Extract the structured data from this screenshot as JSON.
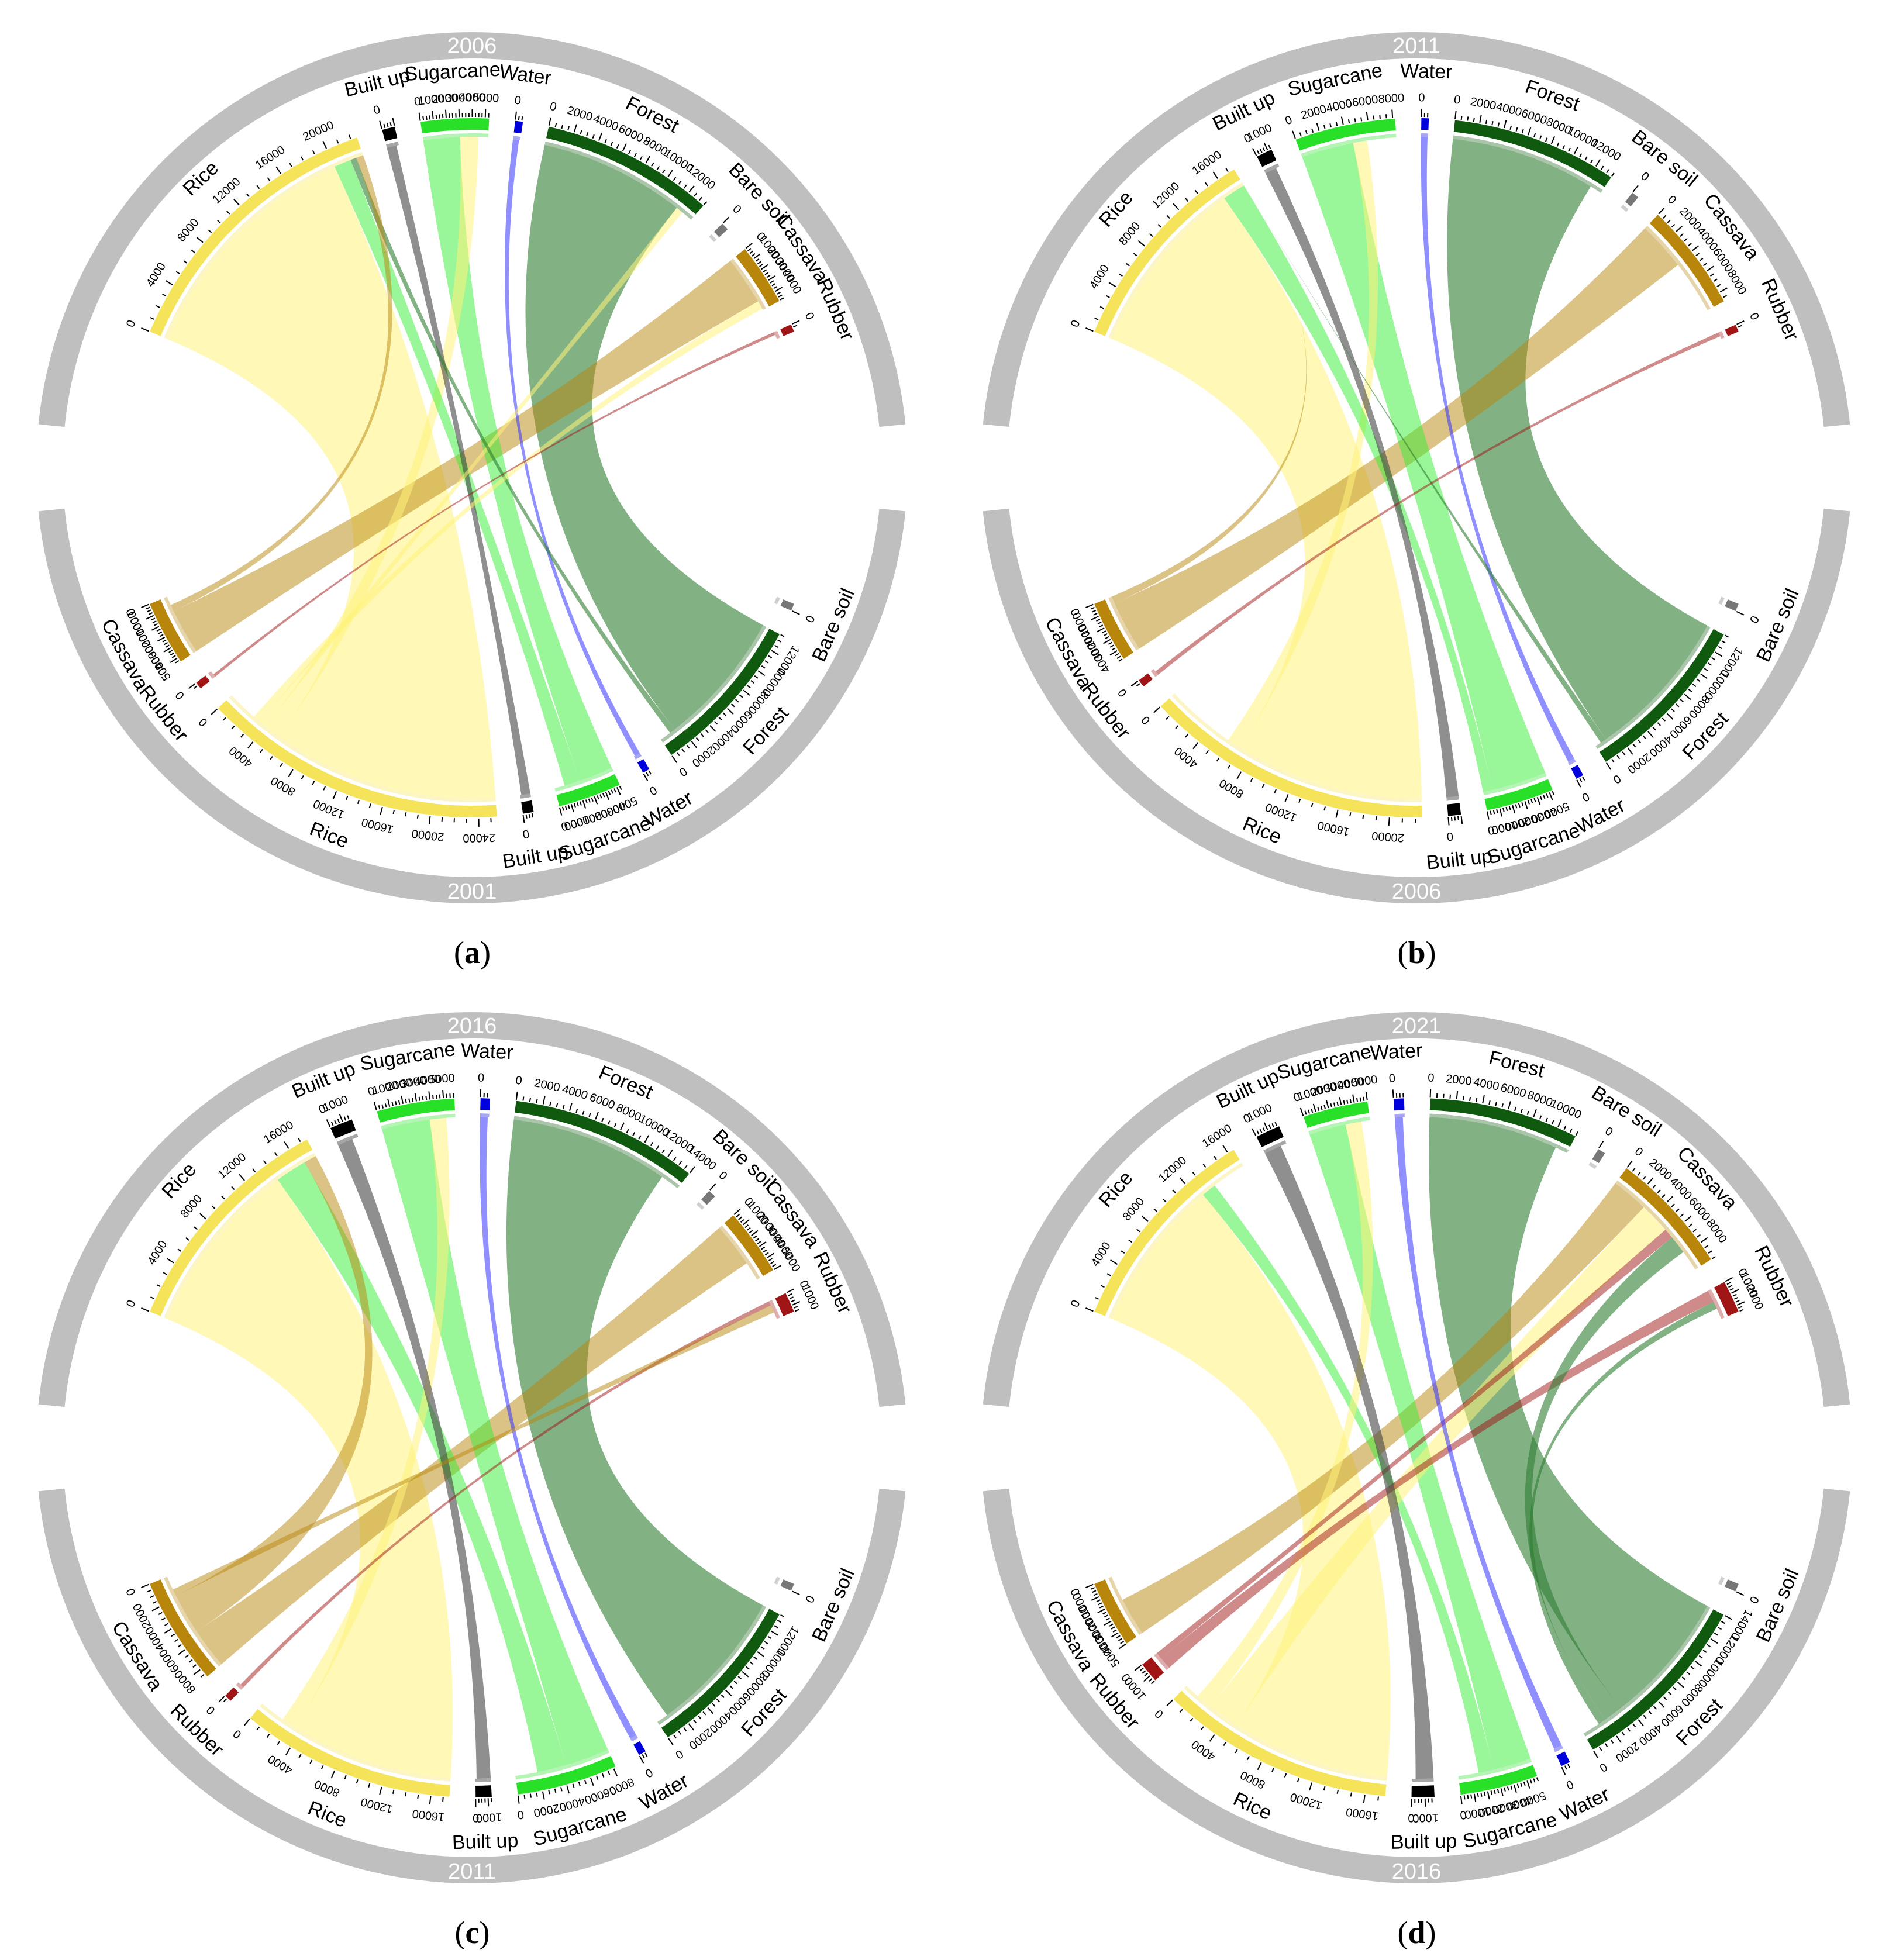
{
  "colors": {
    "Rice": "#f5e35a",
    "Built up": "#000000",
    "Sugarcane": "#28e028",
    "Water": "#0000dd",
    "Forest": "#0f5a0f",
    "Bare soil": "#777777",
    "Cassava": "#b8860b",
    "Rubber": "#a01515",
    "year_band": "#bfbfbf"
  },
  "chart_data": [
    {
      "type": "chord",
      "panel_label": "a",
      "top_year": "2006",
      "bottom_year": "2001",
      "top_classes": [
        "Rice",
        "Built up",
        "Sugarcane",
        "Water",
        "Forest",
        "Bare soil",
        "Cassava",
        "Rubber"
      ],
      "bottom_classes": [
        "Bare soil",
        "Forest",
        "Water",
        "Sugarcane",
        "Built up",
        "Rice",
        "Rubber",
        "Cassava"
      ],
      "top_areas": {
        "Rice": 22500,
        "Built up": 1000,
        "Sugarcane": 5300,
        "Water": 600,
        "Forest": 13500,
        "Bare soil": 80,
        "Cassava": 4800,
        "Rubber": 400
      },
      "bottom_areas": {
        "Bare soil": 80,
        "Forest": 13500,
        "Water": 600,
        "Sugarcane": 5300,
        "Built up": 900,
        "Rice": 25500,
        "Rubber": 350,
        "Cassava": 5400
      },
      "flows": [
        {
          "from": "Rice",
          "to": "Rice",
          "value": 20000
        },
        {
          "from": "Forest",
          "to": "Forest",
          "value": 12000
        },
        {
          "from": "Cassava",
          "to": "Cassava",
          "value": 4000
        },
        {
          "from": "Sugarcane",
          "to": "Sugarcane",
          "value": 3000
        },
        {
          "from": "Rice",
          "to": "Sugarcane",
          "value": 1500
        },
        {
          "from": "Sugarcane",
          "to": "Rice",
          "value": 1400
        },
        {
          "from": "Water",
          "to": "Water",
          "value": 500
        },
        {
          "from": "Built up",
          "to": "Built up",
          "value": 800
        },
        {
          "from": "Rice",
          "to": "Forest",
          "value": 600
        },
        {
          "from": "Forest",
          "to": "Rice",
          "value": 500
        },
        {
          "from": "Cassava",
          "to": "Rice",
          "value": 600
        },
        {
          "from": "Rice",
          "to": "Cassava",
          "value": 700
        },
        {
          "from": "Rubber",
          "to": "Rubber",
          "value": 250
        }
      ]
    },
    {
      "type": "chord",
      "panel_label": "b",
      "top_year": "2011",
      "bottom_year": "2006",
      "top_classes": [
        "Rice",
        "Built up",
        "Sugarcane",
        "Water",
        "Forest",
        "Bare soil",
        "Cassava",
        "Rubber"
      ],
      "bottom_classes": [
        "Bare soil",
        "Forest",
        "Water",
        "Sugarcane",
        "Built up",
        "Rice",
        "Rubber",
        "Cassava"
      ],
      "top_areas": {
        "Rice": 17500,
        "Built up": 1300,
        "Sugarcane": 8200,
        "Water": 600,
        "Forest": 13500,
        "Bare soil": 80,
        "Cassava": 8800,
        "Rubber": 400
      },
      "bottom_areas": {
        "Bare soil": 80,
        "Forest": 13500,
        "Water": 600,
        "Sugarcane": 5300,
        "Built up": 1000,
        "Rice": 22500,
        "Rubber": 400,
        "Cassava": 4800
      },
      "flows": [
        {
          "from": "Rice",
          "to": "Rice",
          "value": 15500
        },
        {
          "from": "Forest",
          "to": "Forest",
          "value": 12500
        },
        {
          "from": "Cassava",
          "to": "Cassava",
          "value": 4200
        },
        {
          "from": "Sugarcane",
          "to": "Sugarcane",
          "value": 4500
        },
        {
          "from": "Rice",
          "to": "Sugarcane",
          "value": 1200
        },
        {
          "from": "Sugarcane",
          "to": "Rice",
          "value": 2800
        },
        {
          "from": "Water",
          "to": "Water",
          "value": 550
        },
        {
          "from": "Built up",
          "to": "Built up",
          "value": 1000
        },
        {
          "from": "Cassava",
          "to": "Rice",
          "value": 3500
        },
        {
          "from": "Forest",
          "to": "Rice",
          "value": 500
        },
        {
          "from": "Rubber",
          "to": "Rubber",
          "value": 350
        }
      ]
    },
    {
      "type": "chord",
      "panel_label": "c",
      "top_year": "2016",
      "bottom_year": "2011",
      "top_classes": [
        "Rice",
        "Built up",
        "Sugarcane",
        "Water",
        "Forest",
        "Bare soil",
        "Cassava",
        "Rubber"
      ],
      "bottom_classes": [
        "Bare soil",
        "Forest",
        "Water",
        "Sugarcane",
        "Built up",
        "Rice",
        "Rubber",
        "Cassava"
      ],
      "top_areas": {
        "Rice": 17500,
        "Built up": 1700,
        "Sugarcane": 5800,
        "Water": 700,
        "Forest": 14000,
        "Bare soil": 80,
        "Cassava": 5000,
        "Rubber": 1500
      },
      "bottom_areas": {
        "Bare soil": 80,
        "Forest": 13500,
        "Water": 600,
        "Sugarcane": 8200,
        "Built up": 1300,
        "Rice": 17500,
        "Rubber": 400,
        "Cassava": 8800
      },
      "flows": [
        {
          "from": "Rice",
          "to": "Rice",
          "value": 14000
        },
        {
          "from": "Forest",
          "to": "Forest",
          "value": 12500
        },
        {
          "from": "Cassava",
          "to": "Cassava",
          "value": 3500
        },
        {
          "from": "Sugarcane",
          "to": "Sugarcane",
          "value": 3800
        },
        {
          "from": "Sugarcane",
          "to": "Rice",
          "value": 2500
        },
        {
          "from": "Rice",
          "to": "Sugarcane",
          "value": 1300
        },
        {
          "from": "Cassava",
          "to": "Rice",
          "value": 3500
        },
        {
          "from": "Water",
          "to": "Water",
          "value": 600
        },
        {
          "from": "Built up",
          "to": "Built up",
          "value": 1200
        },
        {
          "from": "Rubber",
          "to": "Rubber",
          "value": 350
        },
        {
          "from": "Cassava",
          "to": "Rubber",
          "value": 600
        }
      ]
    },
    {
      "type": "chord",
      "panel_label": "d",
      "top_year": "2021",
      "bottom_year": "2016",
      "top_classes": [
        "Rice",
        "Built up",
        "Sugarcane",
        "Water",
        "Forest",
        "Bare soil",
        "Cassava",
        "Rubber"
      ],
      "bottom_classes": [
        "Bare soil",
        "Forest",
        "Water",
        "Sugarcane",
        "Built up",
        "Rice",
        "Rubber",
        "Cassava"
      ],
      "top_areas": {
        "Rice": 16500,
        "Built up": 1900,
        "Sugarcane": 5000,
        "Water": 800,
        "Forest": 11500,
        "Bare soil": 150,
        "Cassava": 9500,
        "Rubber": 2500
      },
      "bottom_areas": {
        "Bare soil": 80,
        "Forest": 14000,
        "Water": 700,
        "Sugarcane": 5800,
        "Built up": 1700,
        "Rice": 17500,
        "Rubber": 1500,
        "Cassava": 5000
      },
      "flows": [
        {
          "from": "Rice",
          "to": "Rice",
          "value": 12500
        },
        {
          "from": "Forest",
          "to": "Forest",
          "value": 10500
        },
        {
          "from": "Cassava",
          "to": "Cassava",
          "value": 3000
        },
        {
          "from": "Sugarcane",
          "to": "Sugarcane",
          "value": 3000
        },
        {
          "from": "Sugarcane",
          "to": "Rice",
          "value": 1200
        },
        {
          "from": "Rice",
          "to": "Cassava",
          "value": 2500
        },
        {
          "from": "Rice",
          "to": "Sugarcane",
          "value": 1300
        },
        {
          "from": "Rubber",
          "to": "Rubber",
          "value": 1000
        },
        {
          "from": "Rubber",
          "to": "Cassava",
          "value": 800
        },
        {
          "from": "Water",
          "to": "Water",
          "value": 650
        },
        {
          "from": "Built up",
          "to": "Built up",
          "value": 1400
        },
        {
          "from": "Forest",
          "to": "Cassava",
          "value": 1500
        },
        {
          "from": "Forest",
          "to": "Rubber",
          "value": 600
        }
      ]
    }
  ]
}
